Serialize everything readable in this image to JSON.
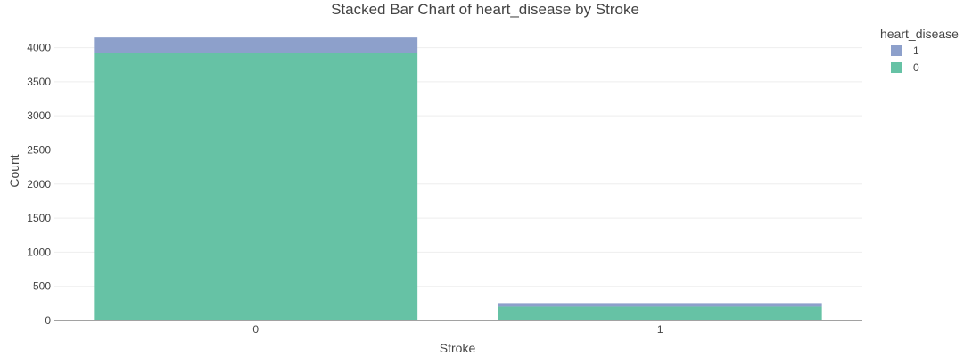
{
  "chart_data": {
    "type": "bar",
    "stacked": true,
    "title": "Stacked Bar Chart of heart_disease by Stroke",
    "xlabel": "Stroke",
    "ylabel": "Count",
    "categories": [
      "0",
      "1"
    ],
    "ylim": [
      0,
      4151
    ],
    "yticks": [
      0,
      500,
      1000,
      1500,
      2000,
      2500,
      3000,
      3500,
      4000
    ],
    "grid": true,
    "legend": {
      "title": "heart_disease",
      "position": "top-right"
    },
    "series": [
      {
        "name": "0",
        "color": "#66c2a5",
        "values": [
          3920,
          203
        ]
      },
      {
        "name": "1",
        "color": "#8da0cb",
        "values": [
          229,
          40
        ]
      }
    ]
  }
}
